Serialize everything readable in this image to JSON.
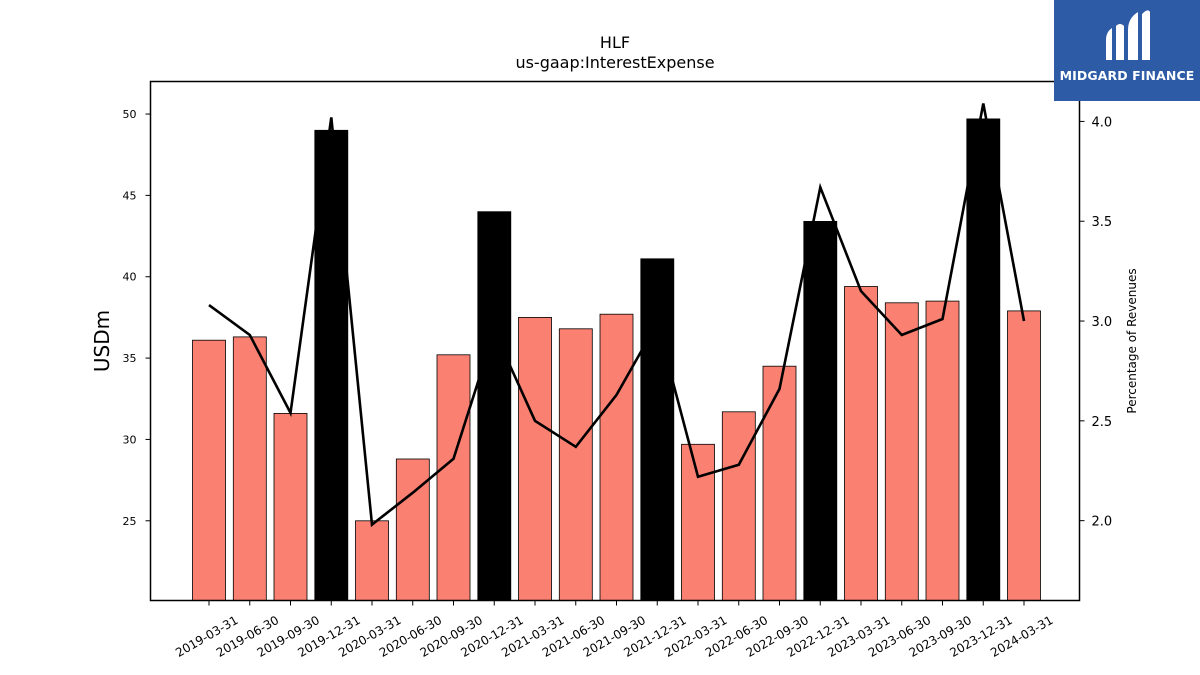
{
  "chart_data": {
    "type": "bar",
    "title": "HLF",
    "subtitle": "us-gaap:InterestExpense",
    "ylabel": "USDm",
    "y2label": "Percentage of Revenues",
    "ylim": [
      20.1,
      52.0
    ],
    "y2lim": [
      1.6,
      4.2
    ],
    "yticks": [
      25,
      30,
      35,
      40,
      45,
      50
    ],
    "y2ticks": [
      2.0,
      2.5,
      3.0,
      3.5,
      4.0
    ],
    "categories": [
      "2019-03-31",
      "2019-06-30",
      "2019-09-30",
      "2019-12-31",
      "2020-03-31",
      "2020-06-30",
      "2020-09-30",
      "2020-12-31",
      "2021-03-31",
      "2021-06-30",
      "2021-09-30",
      "2021-12-31",
      "2022-03-31",
      "2022-06-30",
      "2022-09-30",
      "2022-12-31",
      "2023-03-31",
      "2023-06-30",
      "2023-09-30",
      "2023-12-31",
      "2024-03-31"
    ],
    "series": [
      {
        "type": "bar",
        "values": [
          36.1,
          36.3,
          31.6,
          49.0,
          25.0,
          28.8,
          35.2,
          44.0,
          37.5,
          36.8,
          37.7,
          41.1,
          29.7,
          31.7,
          34.5,
          43.4,
          39.4,
          38.4,
          38.5,
          49.7,
          37.9
        ],
        "highlight": [
          false,
          false,
          false,
          true,
          false,
          false,
          false,
          true,
          false,
          false,
          false,
          true,
          false,
          false,
          false,
          true,
          false,
          false,
          false,
          true,
          false
        ]
      },
      {
        "type": "line",
        "axis": "right",
        "values": [
          3.08,
          2.93,
          2.54,
          4.02,
          1.98,
          2.14,
          2.31,
          2.95,
          2.5,
          2.37,
          2.63,
          2.99,
          2.22,
          2.28,
          2.66,
          3.67,
          3.15,
          2.93,
          3.01,
          4.09,
          3.0
        ]
      }
    ],
    "colors": {
      "bar": "#fa8072",
      "bar_highlight": "#000000",
      "line": "#000000"
    },
    "grid": false
  },
  "logo": {
    "text": "MIDGARD FINANCE",
    "bg": "#2d5ba6"
  }
}
